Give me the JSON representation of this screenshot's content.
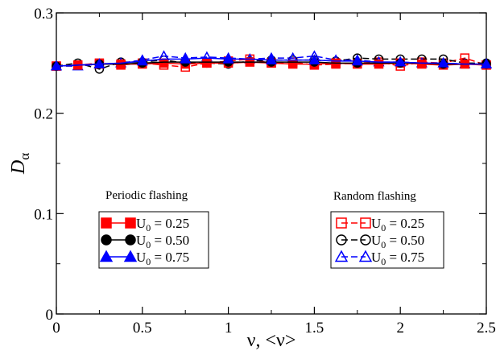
{
  "chart_data": {
    "type": "line",
    "xlabel": "ν, <ν>",
    "ylabel": "D",
    "ylabel_sub": "α",
    "xlim": [
      0,
      2.5
    ],
    "ylim": [
      0,
      0.3
    ],
    "x_ticks": [
      0,
      0.5,
      1,
      1.5,
      2,
      2.5
    ],
    "x_tick_labels": [
      "0",
      "0.5",
      "1",
      "1.5",
      "2",
      "2.5"
    ],
    "y_ticks": [
      0,
      0.1,
      0.2,
      0.3
    ],
    "y_tick_labels": [
      "0",
      "0.1",
      "0.2",
      "0.3"
    ],
    "grid": false,
    "legends": [
      {
        "title": "Periodic flashing",
        "placement": "bottom-left",
        "entries": [
          "U_0 = 0.25",
          "U_0 = 0.50",
          "U_0 = 0.75"
        ]
      },
      {
        "title": "Random flashing",
        "placement": "bottom-right",
        "entries": [
          "U_0 = 0.25",
          "U_0 = 0.50",
          "U_0 = 0.75"
        ]
      }
    ],
    "series": [
      {
        "name": "Periodic U_0 = 0.25",
        "color": "#ff0000",
        "marker": "square",
        "filled": true,
        "dashed": false,
        "x": [
          0,
          0.125,
          0.25,
          0.375,
          0.5,
          0.625,
          0.75,
          0.875,
          1,
          1.125,
          1.25,
          1.375,
          1.5,
          1.625,
          1.75,
          1.875,
          2,
          2.125,
          2.25,
          2.375,
          2.5
        ],
        "y": [
          0.247,
          0.248,
          0.249,
          0.249,
          0.249,
          0.25,
          0.249,
          0.25,
          0.25,
          0.251,
          0.25,
          0.249,
          0.249,
          0.25,
          0.249,
          0.249,
          0.25,
          0.249,
          0.248,
          0.249,
          0.248
        ]
      },
      {
        "name": "Periodic U_0 = 0.50",
        "color": "#000000",
        "marker": "circle",
        "filled": true,
        "dashed": false,
        "x": [
          0,
          0.125,
          0.25,
          0.375,
          0.5,
          0.625,
          0.75,
          0.875,
          1,
          1.125,
          1.25,
          1.375,
          1.5,
          1.625,
          1.75,
          1.875,
          2,
          2.125,
          2.25,
          2.375,
          2.5
        ],
        "y": [
          0.247,
          0.248,
          0.249,
          0.249,
          0.25,
          0.251,
          0.251,
          0.251,
          0.251,
          0.251,
          0.251,
          0.251,
          0.251,
          0.25,
          0.25,
          0.25,
          0.25,
          0.25,
          0.249,
          0.249,
          0.249
        ]
      },
      {
        "name": "Periodic U_0 = 0.75",
        "color": "#0000ff",
        "marker": "triangle",
        "filled": true,
        "dashed": false,
        "x": [
          0,
          0.125,
          0.25,
          0.375,
          0.5,
          0.625,
          0.75,
          0.875,
          1,
          1.125,
          1.25,
          1.375,
          1.5,
          1.625,
          1.75,
          1.875,
          2,
          2.125,
          2.25,
          2.375,
          2.5
        ],
        "y": [
          0.247,
          0.248,
          0.249,
          0.25,
          0.252,
          0.254,
          0.254,
          0.255,
          0.254,
          0.254,
          0.253,
          0.253,
          0.253,
          0.252,
          0.252,
          0.251,
          0.251,
          0.25,
          0.25,
          0.249,
          0.249
        ]
      },
      {
        "name": "Random U_0 = 0.25",
        "color": "#ff0000",
        "marker": "square",
        "filled": false,
        "dashed": true,
        "x": [
          0,
          0.125,
          0.25,
          0.375,
          0.5,
          0.625,
          0.75,
          0.875,
          1,
          1.125,
          1.25,
          1.375,
          1.5,
          1.625,
          1.75,
          1.875,
          2,
          2.125,
          2.25,
          2.375,
          2.5
        ],
        "y": [
          0.247,
          0.248,
          0.25,
          0.248,
          0.25,
          0.248,
          0.246,
          0.25,
          0.252,
          0.254,
          0.25,
          0.251,
          0.248,
          0.249,
          0.25,
          0.251,
          0.247,
          0.251,
          0.25,
          0.255,
          0.248
        ]
      },
      {
        "name": "Random U_0 = 0.50",
        "color": "#000000",
        "marker": "circle",
        "filled": false,
        "dashed": true,
        "x": [
          0,
          0.125,
          0.25,
          0.375,
          0.5,
          0.625,
          0.75,
          0.875,
          1,
          1.125,
          1.25,
          1.375,
          1.5,
          1.625,
          1.75,
          1.875,
          2,
          2.125,
          2.25,
          2.375,
          2.5
        ],
        "y": [
          0.247,
          0.25,
          0.244,
          0.251,
          0.251,
          0.253,
          0.25,
          0.25,
          0.249,
          0.252,
          0.253,
          0.253,
          0.253,
          0.252,
          0.255,
          0.254,
          0.254,
          0.254,
          0.254,
          0.25,
          0.25
        ]
      },
      {
        "name": "Random U_0 = 0.75",
        "color": "#0000ff",
        "marker": "triangle",
        "filled": false,
        "dashed": true,
        "x": [
          0,
          0.125,
          0.25,
          0.375,
          0.5,
          0.625,
          0.75,
          0.875,
          1,
          1.125,
          1.25,
          1.375,
          1.5,
          1.625,
          1.75,
          1.875,
          2,
          2.125,
          2.25,
          2.375,
          2.5
        ],
        "y": [
          0.247,
          0.247,
          0.249,
          0.25,
          0.253,
          0.257,
          0.255,
          0.256,
          0.255,
          0.254,
          0.255,
          0.255,
          0.257,
          0.253,
          0.253,
          0.251,
          0.251,
          0.25,
          0.25,
          0.249,
          0.249
        ]
      }
    ]
  }
}
